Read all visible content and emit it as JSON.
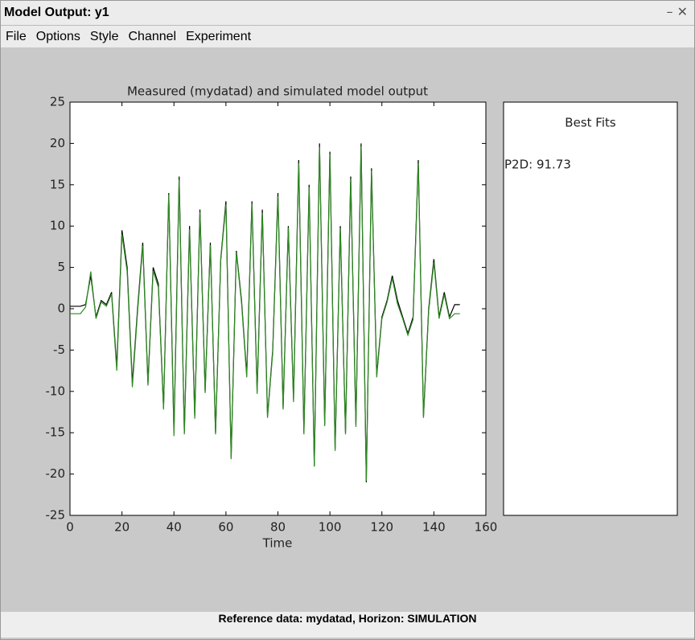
{
  "window": {
    "title": "Model Output: y1",
    "menu": [
      "File",
      "Options",
      "Style",
      "Channel",
      "Experiment"
    ]
  },
  "chart_data": {
    "type": "line",
    "title": "Measured (mydatad) and simulated model output",
    "xlabel": "Time",
    "x": [
      0,
      2,
      4,
      6,
      8,
      10,
      12,
      14,
      16,
      18,
      20,
      22,
      24,
      26,
      28,
      30,
      32,
      34,
      36,
      38,
      40,
      42,
      44,
      46,
      48,
      50,
      52,
      54,
      56,
      58,
      60,
      62,
      64,
      66,
      68,
      70,
      72,
      74,
      76,
      78,
      80,
      82,
      84,
      86,
      88,
      90,
      92,
      94,
      96,
      98,
      100,
      102,
      104,
      106,
      108,
      110,
      112,
      114,
      116,
      118,
      120,
      122,
      124,
      126,
      128,
      130,
      132,
      134,
      136,
      138,
      140,
      142,
      144,
      146,
      148,
      150
    ],
    "series": [
      {
        "name": "mydatad",
        "color": "#000000",
        "values": [
          0.3,
          0.3,
          0.3,
          0.5,
          4,
          -1,
          1,
          0.5,
          2,
          -7,
          9.5,
          5,
          -9,
          0,
          8,
          -9,
          5,
          3,
          -12,
          14,
          -15,
          16,
          -15,
          10,
          -13,
          12,
          -10,
          8,
          -15,
          6,
          13,
          -18,
          7,
          1,
          -8,
          13,
          -10,
          12,
          -13,
          -5,
          14,
          -12,
          10,
          -11,
          18,
          -15,
          15,
          -19,
          20,
          -14,
          19,
          -17,
          10,
          -15,
          16,
          -14,
          20,
          -21,
          17,
          -8,
          -1,
          1,
          4,
          1,
          -1,
          -3,
          -1,
          18,
          -13,
          0,
          6,
          -1,
          2,
          -1,
          0.5,
          0.5
        ]
      },
      {
        "name": "P2D",
        "color": "#2e8b22",
        "values": [
          -0.6,
          -0.6,
          -0.6,
          0.2,
          4.5,
          -1.2,
          0.8,
          0.3,
          1.8,
          -7.5,
          9,
          4.5,
          -9.5,
          -0.4,
          7.6,
          -9.3,
          4.6,
          2.6,
          -12.2,
          13.8,
          -15.4,
          15.6,
          -15.2,
          9.6,
          -13.3,
          11.7,
          -10.2,
          7.7,
          -15.2,
          5.8,
          12.6,
          -18.2,
          6.8,
          0.7,
          -8.3,
          12.7,
          -10.3,
          11.6,
          -13.2,
          -5.3,
          13.6,
          -12.2,
          9.8,
          -11.3,
          17.6,
          -15.2,
          14.7,
          -19.1,
          19.6,
          -14.2,
          18.7,
          -17.2,
          9.7,
          -15.2,
          15.7,
          -14.3,
          19.6,
          -20.8,
          16.7,
          -8.3,
          -1.2,
          0.8,
          3.7,
          0.6,
          -1.2,
          -3.2,
          -1.3,
          17.6,
          -13.2,
          -0.3,
          5.6,
          -1.2,
          1.7,
          -1.2,
          -0.6,
          -0.6
        ]
      }
    ],
    "xlim": [
      0,
      160
    ],
    "xticks": [
      0,
      20,
      40,
      60,
      80,
      100,
      120,
      140,
      160
    ],
    "ylim": [
      -25,
      25
    ],
    "yticks": [
      -25,
      -20,
      -15,
      -10,
      -5,
      0,
      5,
      10,
      15,
      20,
      25
    ],
    "best_fits": {
      "title": "Best Fits",
      "entries": [
        "P2D: 91.73"
      ]
    }
  },
  "footer": "Reference data:  mydatad, Horizon: SIMULATION"
}
